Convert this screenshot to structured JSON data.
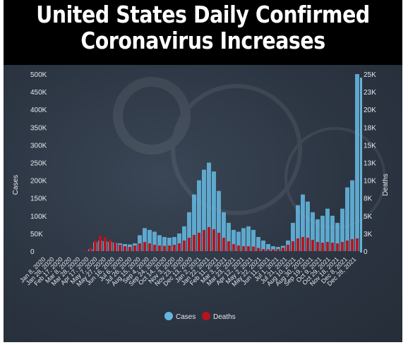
{
  "header": {
    "title_line1": "United States Daily Confirmed",
    "title_line2": "Coronavirus Increases"
  },
  "chart_data": {
    "type": "bar",
    "title": "United States Daily Confirmed Coronavirus Increases",
    "ylabel_left": "Cases",
    "ylabel_right": "Deaths",
    "yticks_left": [
      "500K",
      "450K",
      "400K",
      "350K",
      "300K",
      "250K",
      "200K",
      "150K",
      "100K",
      "50K",
      "0"
    ],
    "yticks_right": [
      "25K",
      "23K",
      "20K",
      "18K",
      "15K",
      "13K",
      "10K",
      "8K",
      "5K",
      "3K",
      "0"
    ],
    "ylim_left": [
      0,
      500000
    ],
    "ylim_right": [
      0,
      25000
    ],
    "xticks": [
      "Jan 8, 2020",
      "Jan 28, 2020",
      "Feb 17, 2020",
      "Mar 8, 2020",
      "Mar 28, 2020",
      "Apr 17, 2020",
      "May 7, 2020",
      "May 27, 2020",
      "Jun 16, 2020",
      "Jul 6, 2020",
      "Jul 26, 2020",
      "Aug 15, 2020",
      "Sep 4, 2020",
      "Sep 24, 2020",
      "Oct 14, 2020",
      "Nov 3, 2020",
      "Nov 23, 2020",
      "Dec 13, 2020",
      "Jan 2, 2021",
      "Jan 22, 2021",
      "Feb 11, 2021",
      "Mar 3, 2021",
      "Mar 23, 2021",
      "Apr 12, 2021",
      "May 2, 2021",
      "May 22, 2021",
      "Jun 11, 2021",
      "Jul 1, 2021",
      "Jul 21, 2021",
      "Aug 10, 2021",
      "Aug 30, 2021",
      "Sep 19, 2021",
      "Oct 9, 2021",
      "Oct 29, 2021",
      "Nov 18, 2021",
      "Dec 8, 2021",
      "Dec 28, 2021"
    ],
    "series": [
      {
        "name": "Cases",
        "axis": "left",
        "color": "#64b5dd",
        "unit": "cases per day",
        "values": [
          0,
          0,
          0,
          0,
          0,
          0,
          0,
          0,
          0,
          500,
          5000,
          25000,
          30000,
          28000,
          26000,
          24000,
          22000,
          20000,
          19000,
          22000,
          45000,
          65000,
          60000,
          55000,
          45000,
          40000,
          38000,
          40000,
          50000,
          70000,
          110000,
          160000,
          200000,
          230000,
          250000,
          225000,
          170000,
          110000,
          80000,
          60000,
          55000,
          65000,
          70000,
          60000,
          40000,
          30000,
          20000,
          14000,
          12000,
          15000,
          30000,
          80000,
          130000,
          160000,
          140000,
          110000,
          90000,
          100000,
          120000,
          100000,
          80000,
          120000,
          180000,
          200000,
          500000
        ]
      },
      {
        "name": "Deaths",
        "axis": "right",
        "color": "#b8141e",
        "unit": "deaths per day",
        "values": [
          0,
          0,
          0,
          0,
          0,
          0,
          0,
          0,
          0,
          50,
          500,
          1500,
          2200,
          2000,
          1600,
          1200,
          900,
          700,
          600,
          800,
          1100,
          1300,
          1100,
          900,
          800,
          750,
          800,
          900,
          1100,
          1500,
          1900,
          2300,
          2600,
          3000,
          3400,
          3100,
          2600,
          1900,
          1400,
          1000,
          800,
          700,
          700,
          650,
          450,
          300,
          250,
          250,
          300,
          500,
          900,
          1400,
          1800,
          2000,
          1900,
          1600,
          1300,
          1200,
          1300,
          1200,
          1100,
          1300,
          1500,
          1700,
          1800
        ]
      }
    ],
    "legend": {
      "position": "bottom-center",
      "entries": [
        "Cases",
        "Deaths"
      ]
    },
    "grid": false
  }
}
